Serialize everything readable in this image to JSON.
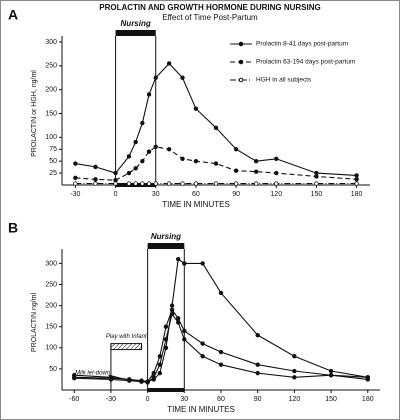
{
  "chart_data": [
    {
      "type": "line",
      "panel": "A",
      "title": "PROLACTIN AND GROWTH HORMONE DURING NURSING",
      "subtitle": "Effect of Time Post-Partum",
      "y_label": "PROLACTIN or HGH, ng/ml",
      "x_label": "TIME IN MINUTES",
      "xlim": [
        -40,
        190
      ],
      "xticks": [
        -30,
        0,
        30,
        60,
        90,
        120,
        150,
        180
      ],
      "ylim": [
        0,
        300
      ],
      "yticks": [
        25,
        50,
        75,
        100,
        150,
        200,
        250,
        300
      ],
      "legend": "upper right",
      "bands": [
        {
          "label": "Nursing",
          "start": 0,
          "end": 30
        }
      ],
      "x": [
        -30,
        -15,
        0,
        10,
        15,
        20,
        25,
        30,
        40,
        50,
        60,
        75,
        90,
        105,
        120,
        150,
        180
      ],
      "series": [
        {
          "name": "Prolactin 8-41 days post-partum",
          "color": "#111111",
          "dash": "solid",
          "marker": "filled",
          "values": [
            45,
            38,
            25,
            60,
            90,
            130,
            190,
            225,
            255,
            225,
            160,
            120,
            75,
            50,
            55,
            25,
            20
          ]
        },
        {
          "name": "Prolactin 63-194 days post-partum",
          "color": "#111111",
          "dash": "dashed",
          "marker": "filled",
          "values": [
            15,
            12,
            10,
            25,
            35,
            50,
            70,
            80,
            75,
            55,
            50,
            45,
            30,
            28,
            25,
            18,
            12
          ]
        },
        {
          "name": "HGH in all subjects",
          "color": "#111111",
          "dash": "dashdot",
          "marker": "open",
          "values": [
            3,
            3,
            3,
            3,
            3,
            3,
            3,
            3,
            3,
            3,
            3,
            3,
            3,
            3,
            3,
            3,
            3
          ]
        }
      ]
    },
    {
      "type": "line",
      "panel": "B",
      "y_label": "PROLACTIN ng/ml",
      "x_label": "TIME IN MINUTES",
      "xlim": [
        -70,
        190
      ],
      "xticks": [
        -60,
        -30,
        0,
        30,
        60,
        90,
        120,
        150,
        180
      ],
      "ylim": [
        0,
        320
      ],
      "yticks": [
        50,
        100,
        150,
        200,
        250,
        300
      ],
      "bands": [
        {
          "label": "Nursing",
          "start": 0,
          "end": 30
        },
        {
          "label": "Play with Infant",
          "start": -30,
          "end": -5
        }
      ],
      "annotations": [
        "Milk let-down"
      ],
      "x": [
        -60,
        -30,
        -15,
        -5,
        0,
        5,
        10,
        15,
        20,
        25,
        30,
        45,
        60,
        90,
        120,
        150,
        180
      ],
      "series": [
        {
          "color": "#111111",
          "dash": "solid",
          "marker": "filled",
          "values": [
            35,
            30,
            25,
            20,
            20,
            25,
            40,
            100,
            200,
            310,
            300,
            300,
            230,
            130,
            80,
            45,
            30
          ]
        },
        {
          "color": "#111111",
          "dash": "solid",
          "marker": "filled",
          "values": [
            30,
            28,
            25,
            22,
            20,
            40,
            80,
            150,
            190,
            170,
            140,
            110,
            90,
            60,
            45,
            35,
            25
          ]
        },
        {
          "color": "#111111",
          "dash": "solid",
          "marker": "filled",
          "values": [
            28,
            25,
            22,
            20,
            18,
            30,
            60,
            120,
            180,
            160,
            120,
            80,
            60,
            40,
            30,
            35,
            30
          ]
        }
      ]
    }
  ]
}
